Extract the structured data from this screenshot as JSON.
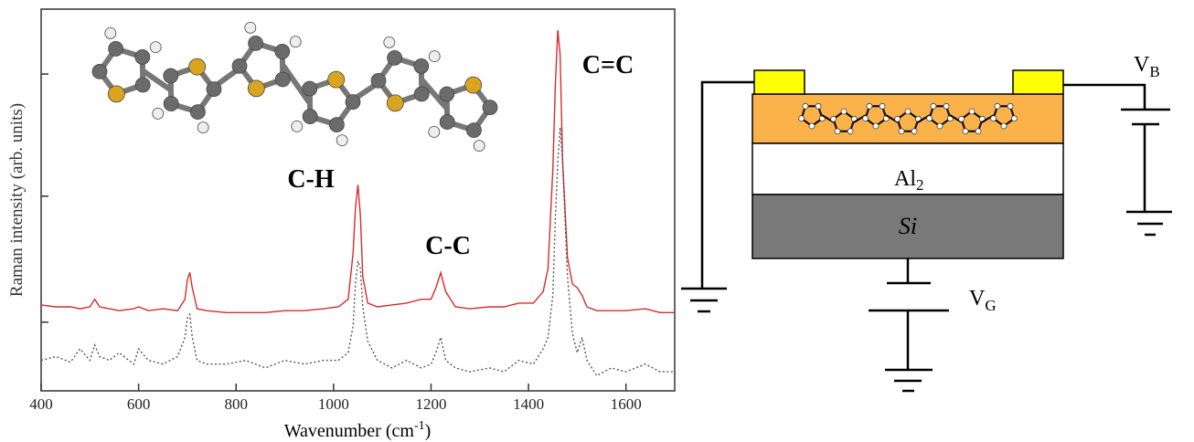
{
  "chart_data": {
    "type": "line",
    "x_label": {
      "before": "Wavenumber (cm",
      "sup": "-1",
      "after": ")"
    },
    "y_label": "Raman intensity (arb. units)",
    "annotations": [
      "C-H",
      "C-C",
      "C=C"
    ],
    "x": [
      400,
      430,
      460,
      480,
      500,
      510,
      520,
      540,
      560,
      590,
      600,
      620,
      650,
      680,
      695,
      700,
      705,
      710,
      720,
      740,
      780,
      820,
      860,
      900,
      940,
      980,
      1010,
      1030,
      1040,
      1045,
      1050,
      1055,
      1060,
      1070,
      1090,
      1120,
      1150,
      1180,
      1200,
      1210,
      1220,
      1230,
      1250,
      1280,
      1320,
      1350,
      1380,
      1410,
      1430,
      1440,
      1450,
      1455,
      1460,
      1465,
      1470,
      1480,
      1490,
      1500,
      1510,
      1520,
      1540,
      1570,
      1600,
      1640,
      1670,
      1700
    ],
    "series": [
      {
        "color": "#d62c2c",
        "style": "solid",
        "values": [
          22.5,
          22,
          22,
          21.5,
          22,
          24,
          22,
          21.5,
          21,
          21.5,
          22,
          21,
          21.5,
          21,
          24,
          29,
          31,
          27,
          21.5,
          21,
          20.5,
          20.5,
          20.5,
          21,
          21,
          21.5,
          22,
          24,
          36,
          48,
          54,
          46,
          30,
          23,
          22,
          22.5,
          23,
          24,
          24,
          27,
          31,
          26,
          22,
          21.5,
          22,
          22,
          23,
          23,
          26,
          32,
          58,
          80,
          94.5,
          88,
          60,
          35,
          28,
          27,
          25,
          22,
          21,
          21,
          21,
          21.5,
          20.5,
          20.5
        ]
      },
      {
        "color": "#555555",
        "style": "dotted",
        "values": [
          8,
          9,
          7.5,
          11,
          8,
          12,
          9,
          8,
          10,
          7,
          11,
          8,
          7,
          9,
          14,
          19,
          20,
          14,
          8,
          7,
          7,
          8,
          6,
          8,
          7,
          8,
          8,
          10,
          17,
          28,
          34,
          32,
          22,
          13,
          8,
          6,
          8,
          6,
          7,
          10,
          14,
          8,
          6,
          5,
          6,
          5,
          8,
          7,
          11,
          14,
          25,
          45,
          60,
          69,
          60,
          30,
          15,
          10,
          14,
          8,
          4,
          6,
          5,
          7,
          5,
          5
        ]
      }
    ],
    "xlim": [
      400,
      1700
    ],
    "xticks": [
      400,
      600,
      800,
      1000,
      1200,
      1400,
      1600
    ],
    "ylim": [
      0,
      100
    ],
    "yticks": [
      18,
      51,
      83
    ]
  },
  "diagram": {
    "labels": [
      {
        "text": "V",
        "sub": "B"
      },
      {
        "text": "Al",
        "sub": "2"
      },
      {
        "text": "Si"
      },
      {
        "text": "V",
        "sub": "G"
      }
    ]
  }
}
